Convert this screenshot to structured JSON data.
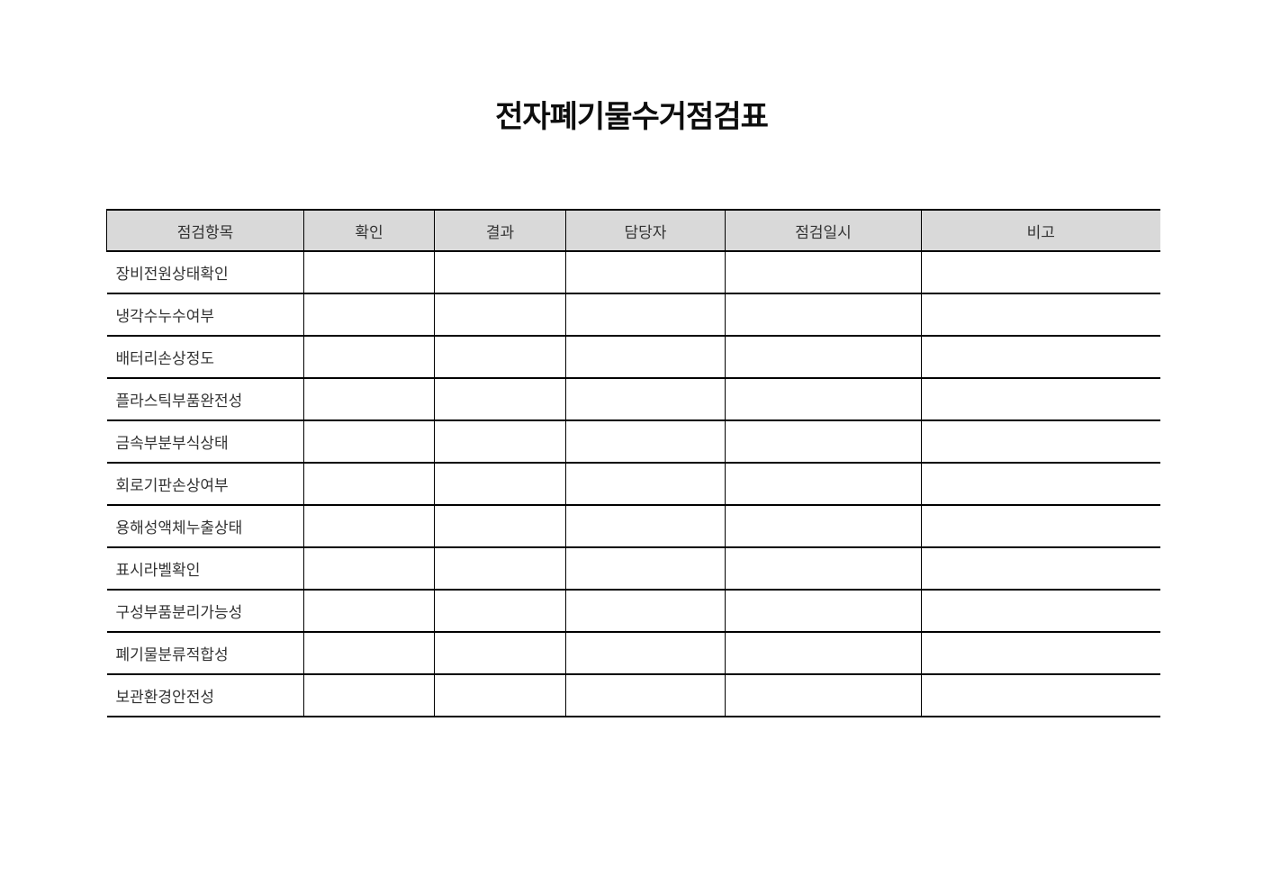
{
  "page": {
    "title": "전자폐기물수거점검표"
  },
  "colors": {
    "header_bg": "#d9d9d9",
    "border": "#000000",
    "body_text": "#333333",
    "title_text": "#0d0d0d"
  },
  "table": {
    "columns": [
      {
        "key": "item",
        "label": "점검항목"
      },
      {
        "key": "check",
        "label": "확인"
      },
      {
        "key": "result",
        "label": "결과"
      },
      {
        "key": "manager",
        "label": "담당자"
      },
      {
        "key": "datetime",
        "label": "점검일시"
      },
      {
        "key": "note",
        "label": "비고"
      }
    ],
    "rows": [
      {
        "item": "장비전원상태확인",
        "check": "",
        "result": "",
        "manager": "",
        "datetime": "",
        "note": ""
      },
      {
        "item": "냉각수누수여부",
        "check": "",
        "result": "",
        "manager": "",
        "datetime": "",
        "note": ""
      },
      {
        "item": "배터리손상정도",
        "check": "",
        "result": "",
        "manager": "",
        "datetime": "",
        "note": ""
      },
      {
        "item": "플라스틱부품완전성",
        "check": "",
        "result": "",
        "manager": "",
        "datetime": "",
        "note": ""
      },
      {
        "item": "금속부분부식상태",
        "check": "",
        "result": "",
        "manager": "",
        "datetime": "",
        "note": ""
      },
      {
        "item": "회로기판손상여부",
        "check": "",
        "result": "",
        "manager": "",
        "datetime": "",
        "note": ""
      },
      {
        "item": "용해성액체누출상태",
        "check": "",
        "result": "",
        "manager": "",
        "datetime": "",
        "note": ""
      },
      {
        "item": "표시라벨확인",
        "check": "",
        "result": "",
        "manager": "",
        "datetime": "",
        "note": ""
      },
      {
        "item": "구성부품분리가능성",
        "check": "",
        "result": "",
        "manager": "",
        "datetime": "",
        "note": ""
      },
      {
        "item": "폐기물분류적합성",
        "check": "",
        "result": "",
        "manager": "",
        "datetime": "",
        "note": ""
      },
      {
        "item": "보관환경안전성",
        "check": "",
        "result": "",
        "manager": "",
        "datetime": "",
        "note": ""
      }
    ]
  }
}
